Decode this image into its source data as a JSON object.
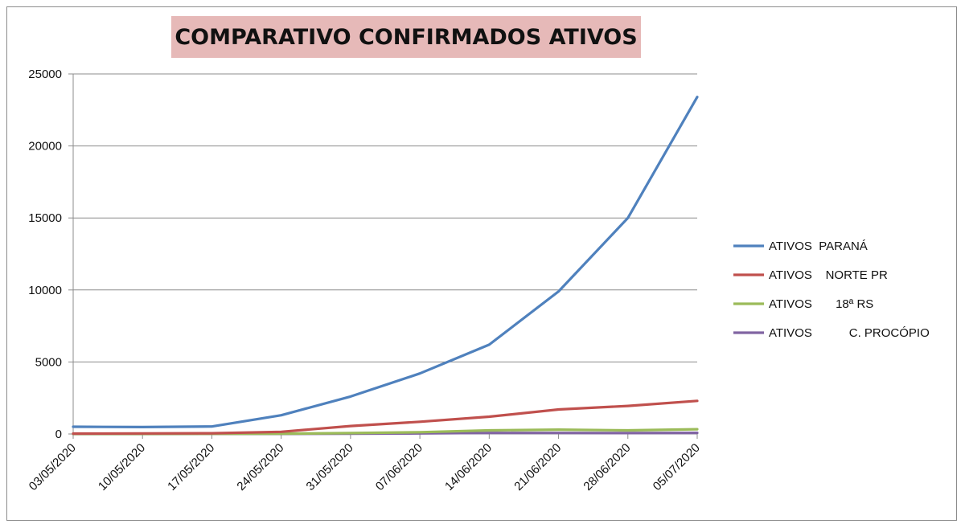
{
  "chart_data": {
    "type": "line",
    "title": "COMPARATIVO CONFIRMADOS ATIVOS",
    "xlabel": "",
    "ylabel": "",
    "ylim": [
      0,
      25000
    ],
    "yticks": [
      "0",
      "5000",
      "10000",
      "15000",
      "20000",
      "25000"
    ],
    "x": [
      "03/05/2020",
      "10/05/2020",
      "17/05/2020",
      "24/05/2020",
      "31/05/2020",
      "07/06/2020",
      "14/06/2020",
      "21/06/2020",
      "28/06/2020",
      "05/07/2020"
    ],
    "grid": true,
    "legend_position": "right",
    "series": [
      {
        "name": "ATIVOS  PARANÁ",
        "color": "#4f81bd",
        "values": [
          500,
          480,
          520,
          1300,
          2600,
          4200,
          6200,
          9900,
          15000,
          23400
        ]
      },
      {
        "name": "ATIVOS    NORTE PR",
        "color": "#c0504d",
        "values": [
          30,
          40,
          50,
          150,
          550,
          850,
          1200,
          1700,
          1950,
          2300
        ]
      },
      {
        "name": "ATIVOS       18ª RS",
        "color": "#9bbb59",
        "values": [
          5,
          5,
          10,
          20,
          60,
          120,
          250,
          300,
          250,
          330
        ]
      },
      {
        "name": "ATIVOS           C. PROCÓPIO",
        "color": "#8064a2",
        "values": [
          2,
          2,
          4,
          8,
          20,
          40,
          70,
          70,
          60,
          80
        ]
      }
    ]
  }
}
